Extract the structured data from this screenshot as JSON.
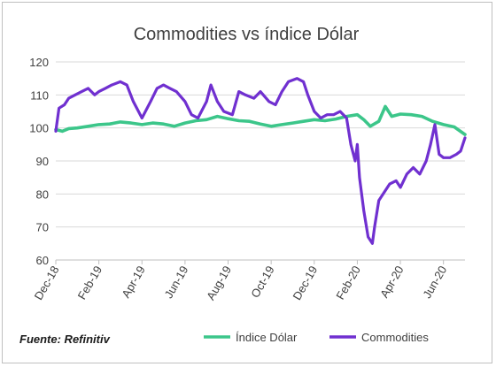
{
  "chart_data": {
    "type": "line",
    "title": "Commodities vs índice Dólar",
    "ylim": [
      60,
      120
    ],
    "yticks": [
      60,
      70,
      80,
      90,
      100,
      110,
      120
    ],
    "xticks": [
      "Dec-18",
      "Feb-19",
      "Apr-19",
      "Jun-19",
      "Aug-19",
      "Oct-19",
      "Dec-19",
      "Feb-20",
      "Apr-20",
      "Jun-20"
    ],
    "x_range_months": "Dec-18 to Jul-20",
    "grid": true,
    "legend": "bottom-right",
    "source_note": "Fuente: Refinitiv",
    "series": [
      {
        "name": "Índice Dólar",
        "color": "#3cc68a",
        "x": [
          0,
          0.3,
          0.6,
          1,
          1.5,
          2,
          2.5,
          3,
          3.5,
          4,
          4.5,
          5,
          5.5,
          6,
          6.5,
          7,
          7.5,
          8,
          8.5,
          9,
          9.5,
          10,
          10.5,
          11,
          11.5,
          12,
          12.5,
          13,
          13.5,
          14,
          14.3,
          14.6,
          15,
          15.3,
          15.6,
          16,
          16.5,
          17,
          17.5,
          18,
          18.5,
          19
        ],
        "values": [
          99.5,
          99,
          99.8,
          100,
          100.5,
          101,
          101.2,
          101.8,
          101.5,
          101,
          101.5,
          101.2,
          100.5,
          101.5,
          102.2,
          102.5,
          103.5,
          102.8,
          102.2,
          102,
          101.2,
          100.5,
          101,
          101.5,
          102,
          102.5,
          102.2,
          102.7,
          103.5,
          104,
          102.5,
          100.5,
          102,
          106.5,
          103.5,
          104.2,
          104,
          103.5,
          102,
          101,
          100.3,
          98
        ]
      },
      {
        "name": "Commodities",
        "color": "#7030d0",
        "x": [
          0,
          0.15,
          0.4,
          0.6,
          0.9,
          1.2,
          1.5,
          1.8,
          2,
          2.3,
          2.6,
          3,
          3.3,
          3.6,
          4,
          4.4,
          4.7,
          5,
          5.3,
          5.6,
          6,
          6.3,
          6.6,
          7,
          7.2,
          7.5,
          7.8,
          8.2,
          8.5,
          8.8,
          9.2,
          9.5,
          9.9,
          10.2,
          10.5,
          10.8,
          11.2,
          11.5,
          11.7,
          12,
          12.3,
          12.6,
          12.9,
          13.2,
          13.5,
          13.7,
          13.9,
          14,
          14.1,
          14.3,
          14.5,
          14.7,
          14.8,
          15,
          15.2,
          15.5,
          15.8,
          16,
          16.3,
          16.6,
          16.9,
          17.2,
          17.4,
          17.6,
          17.8,
          18,
          18.3,
          18.6,
          18.8,
          19
        ],
        "values": [
          99,
          106,
          107,
          109,
          110,
          111,
          112,
          110,
          111,
          112,
          113,
          114,
          113,
          108,
          103,
          108,
          112,
          113,
          112,
          111,
          108,
          104,
          103,
          108,
          113,
          108,
          105,
          104,
          111,
          110,
          109,
          111,
          108,
          107,
          111,
          114,
          115,
          114,
          110,
          105,
          103,
          104,
          104,
          105,
          103,
          95,
          90,
          95,
          85,
          75,
          67,
          65,
          70,
          78,
          80,
          83,
          84,
          82,
          86,
          88,
          86,
          90,
          95,
          101,
          92,
          91,
          91,
          92,
          93,
          97
        ]
      }
    ]
  }
}
